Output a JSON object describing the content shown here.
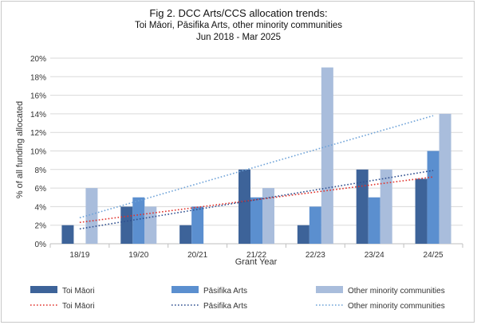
{
  "chart_data": {
    "type": "bar",
    "title": "Fig 2. DCC Arts/CCS allocation trends:",
    "subtitle_line1": "Toi Māori, Pāsifika Arts, other minority communities",
    "subtitle_line2": "Jun 2018 - Mar 2025",
    "xlabel": "Grant Year",
    "ylabel": "% of all funding allocated",
    "ylim": [
      0,
      20
    ],
    "yticks": [
      0,
      2,
      4,
      6,
      8,
      10,
      12,
      14,
      16,
      18,
      20
    ],
    "ytick_labels": [
      "0%",
      "2%",
      "4%",
      "6%",
      "8%",
      "10%",
      "12%",
      "14%",
      "16%",
      "18%",
      "20%"
    ],
    "categories": [
      "18/19",
      "19/20",
      "20/21",
      "21/22",
      "22/23",
      "23/24",
      "24/25"
    ],
    "series": [
      {
        "name": "Toi Māori",
        "values": [
          2,
          4,
          2,
          8,
          2,
          8,
          7
        ],
        "color": "#3d6399"
      },
      {
        "name": "Pāsifika Arts",
        "values": [
          0,
          5,
          4,
          5,
          4,
          5,
          10
        ],
        "color": "#5b8fcf"
      },
      {
        "name": "Other minority communities",
        "values": [
          6,
          4,
          0,
          6,
          19,
          8,
          14
        ],
        "color": "#a9bddc"
      }
    ],
    "trendlines": [
      {
        "name": "Toi Māori",
        "color": "#e0302a",
        "start": 2.3,
        "end": 7.2
      },
      {
        "name": "Pāsifika Arts",
        "color": "#2f4f8f",
        "start": 1.6,
        "end": 7.9
      },
      {
        "name": "Other minority communities",
        "color": "#6fa3d8",
        "start": 2.8,
        "end": 13.8
      }
    ],
    "grid": true,
    "legend_position": "bottom"
  }
}
